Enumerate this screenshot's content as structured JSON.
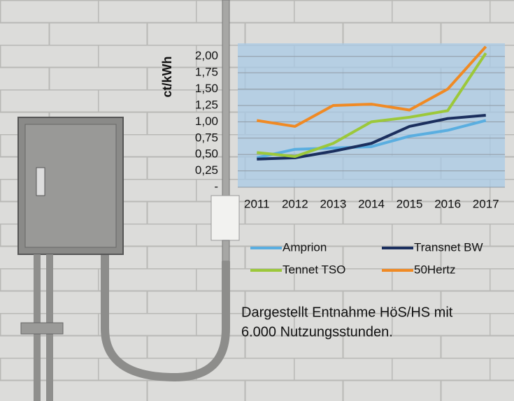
{
  "chart_data": {
    "type": "line",
    "y_label": "ct/kWh",
    "categories": [
      "2011",
      "2012",
      "2013",
      "2014",
      "2015",
      "2016",
      "2017"
    ],
    "series": [
      {
        "name": "Amprion",
        "color": "#5aaee0",
        "values": [
          0.45,
          0.58,
          0.6,
          0.62,
          0.78,
          0.87,
          1.02
        ]
      },
      {
        "name": "Transnet BW",
        "color": "#1b2f5e",
        "values": [
          0.43,
          0.45,
          0.55,
          0.67,
          0.93,
          1.05,
          1.1
        ]
      },
      {
        "name": "Tennet TSO",
        "color": "#9cc83a",
        "values": [
          0.53,
          0.47,
          0.67,
          1.0,
          1.07,
          1.17,
          2.05
        ]
      },
      {
        "name": "50Hertz",
        "color": "#f08a24",
        "values": [
          1.02,
          0.93,
          1.25,
          1.27,
          1.18,
          1.5,
          2.15
        ]
      }
    ],
    "ylim": [
      0,
      2.2
    ],
    "yticks": [
      {
        "value": 0,
        "label": "-"
      },
      {
        "value": 0.25,
        "label": "0,25"
      },
      {
        "value": 0.5,
        "label": "0,50"
      },
      {
        "value": 0.75,
        "label": "0,75"
      },
      {
        "value": 1,
        "label": "1,00"
      },
      {
        "value": 1.25,
        "label": "1,25"
      },
      {
        "value": 1.5,
        "label": "1,50"
      },
      {
        "value": 1.75,
        "label": "1,75"
      },
      {
        "value": 2,
        "label": "2,00"
      }
    ],
    "grid": true,
    "annotation": [
      "Dargestellt Entnahme HöS/HS mit",
      "6.000 Nutzungsstunden."
    ]
  }
}
